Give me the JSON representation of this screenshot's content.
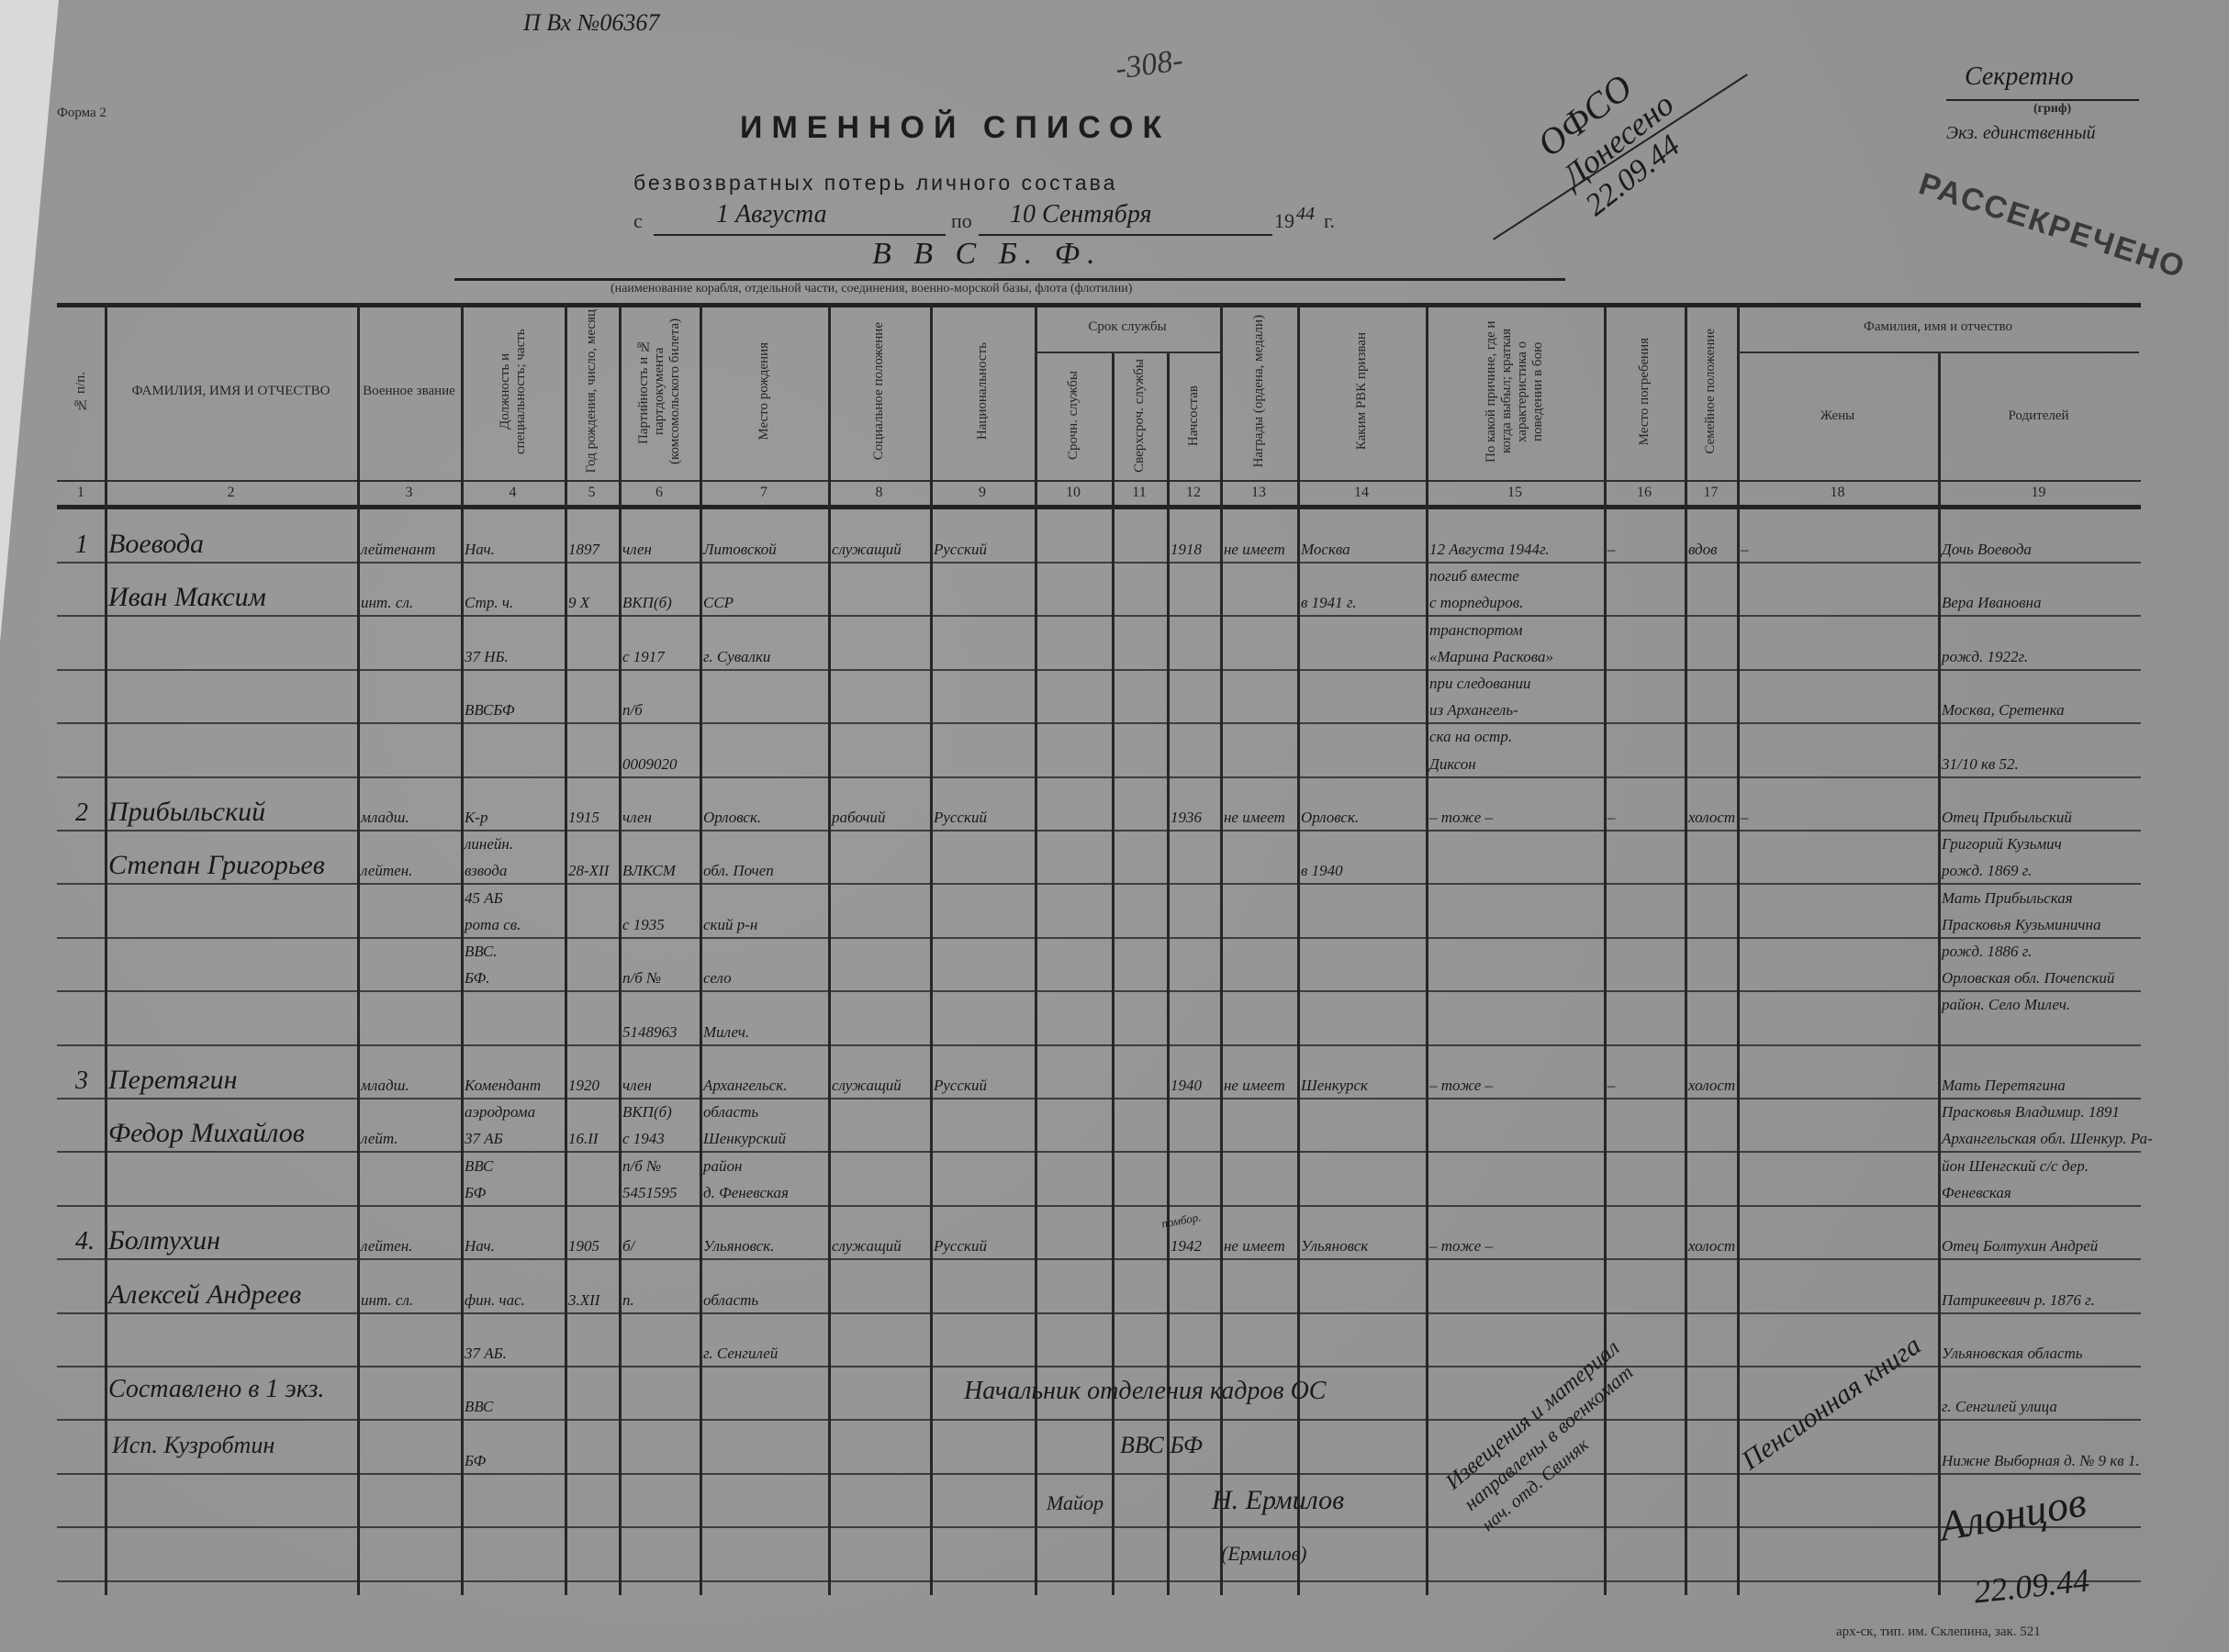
{
  "header": {
    "registration": "П Вх №06367",
    "page_number": "-308-",
    "form_label": "Форма 2",
    "title": "ИМЕННОЙ СПИСОК",
    "subtitle": "безвозвратных потерь личного состава",
    "period_from_label": "с",
    "period_from": "1 Августа",
    "period_to_label": "по",
    "period_to": "10 Сентября",
    "year_prefix": "19",
    "year_suffix": "44",
    "year_label": "г.",
    "unit": "В В С Б. Ф.",
    "unit_caption": "(наименование корабля, отдельной части, соединения, военно-морской базы, флота (флотилии)",
    "ofso_note": [
      "ОФСО",
      "Донесено",
      "22.09.44"
    ],
    "secrecy": "Секретно",
    "secrecy_caption": "(гриф)",
    "copy_note": "Экз. единственный",
    "declassified_stamp": "РАССЕКРЕЧЕНО"
  },
  "columns": [
    {
      "num": "1",
      "label": "№ п/п.",
      "vertical": true
    },
    {
      "num": "2",
      "label": "ФАМИЛИЯ, ИМЯ И ОТЧЕСТВО",
      "vertical": false
    },
    {
      "num": "3",
      "label": "Военное звание",
      "vertical": false
    },
    {
      "num": "4",
      "label": "Должность и специальность; часть",
      "vertical": true
    },
    {
      "num": "5",
      "label": "Год рождения, число, месяц",
      "vertical": true
    },
    {
      "num": "6",
      "label": "Партийность и № партдокумента (комсомольского билета)",
      "vertical": true
    },
    {
      "num": "7",
      "label": "Место рождения",
      "vertical": true
    },
    {
      "num": "8",
      "label": "Социальное положение",
      "vertical": true
    },
    {
      "num": "9",
      "label": "Национальность",
      "vertical": true
    },
    {
      "num": "10",
      "label": "Срочн. службы",
      "vertical": true
    },
    {
      "num": "11",
      "label": "Сверхсроч. службы",
      "vertical": true
    },
    {
      "num": "12",
      "label": "Начсостав",
      "vertical": true
    },
    {
      "num": "13",
      "label": "Награды (ордена, медали)",
      "vertical": true
    },
    {
      "num": "14",
      "label": "Каким РВК призван",
      "vertical": true
    },
    {
      "num": "15",
      "label": "По какой причине, где и когда выбыл; краткая характеристика о поведении в бою",
      "vertical": true
    },
    {
      "num": "16",
      "label": "Место погребения",
      "vertical": true
    },
    {
      "num": "17",
      "label": "Семейное положение",
      "vertical": true
    },
    {
      "num": "18",
      "label": "Жены",
      "vertical": false
    },
    {
      "num": "19",
      "label": "Родителей",
      "vertical": false
    }
  ],
  "column_groups": {
    "service_term": "Срок службы",
    "relatives": "Фамилия, имя и отчество"
  },
  "persons": [
    {
      "num": [
        "1"
      ],
      "name": [
        "Воевода",
        "Иван Максим"
      ],
      "rank": [
        "лейтенант",
        "инт. сл."
      ],
      "position": [
        "Нач.",
        "Стр. ч.",
        "37 НБ.",
        "ВВСБФ"
      ],
      "birth": [
        "1897",
        "9 X"
      ],
      "party": [
        "член",
        "ВКП(б)",
        "с 1917",
        "п/б",
        "0009020"
      ],
      "birthplace": [
        "Литовской",
        "ССР",
        "г. Сувалки"
      ],
      "social": [
        "служащий"
      ],
      "nationality": [
        "Русский"
      ],
      "term_regular": [],
      "term_extended": [],
      "officer": [
        "1918"
      ],
      "awards": [
        "не имеет"
      ],
      "rvk": [
        "Москва",
        "в 1941 г."
      ],
      "cause": [
        "12 Августа 1944г.",
        "погиб вместе",
        "с торпедиров.",
        "транспортом",
        "«Марина Раскова»",
        "при следовании",
        "из Архангель-",
        "ска на остр.",
        "Диксон"
      ],
      "burial": [
        "–"
      ],
      "family": [
        "вдов"
      ],
      "wife": [
        "–"
      ],
      "parents": [
        "Дочь Воевода",
        "Вера Ивановна",
        "рожд. 1922г.",
        "Москва, Сретенка",
        "31/10 кв 52."
      ]
    },
    {
      "num": [
        "2"
      ],
      "name": [
        "Прибыльский",
        "Степан Григорьев"
      ],
      "rank": [
        "младш.",
        "лейтен."
      ],
      "position": [
        "К-р",
        "линейн.",
        "взвода",
        "45 АБ",
        "рота св.",
        "ВВС.",
        "БФ."
      ],
      "birth": [
        "1915",
        "28-XII"
      ],
      "party": [
        "член",
        "ВЛКСМ",
        "с 1935",
        "п/б №",
        "5148963"
      ],
      "birthplace": [
        "Орловск.",
        "обл. Почеп",
        "ский р-н",
        "село",
        "Милеч."
      ],
      "social": [
        "рабочий"
      ],
      "nationality": [
        "Русский"
      ],
      "term_regular": [],
      "term_extended": [],
      "officer": [
        "1936"
      ],
      "awards": [
        "не имеет"
      ],
      "rvk": [
        "Орловск.",
        "в 1940"
      ],
      "cause": [
        "– тоже –"
      ],
      "burial": [
        "–"
      ],
      "family": [
        "холост"
      ],
      "wife": [
        "–"
      ],
      "parents": [
        "Отец Прибыльский",
        "Григорий Кузьмич",
        "рожд. 1869 г.",
        "Мать Прибыльская",
        "Прасковья Кузьминична",
        "рожд. 1886 г.",
        "Орловская обл. Почепский",
        "район. Село Милеч."
      ]
    },
    {
      "num": [
        "3"
      ],
      "name": [
        "Перетягин",
        "Федор Михайлов"
      ],
      "rank": [
        "младш.",
        "лейт."
      ],
      "position": [
        "Комендант",
        "аэродрома",
        "37 АБ",
        "ВВС",
        "БФ"
      ],
      "birth": [
        "1920",
        "16.II"
      ],
      "party": [
        "член",
        "ВКП(б)",
        "с 1943",
        "п/б №",
        "5451595"
      ],
      "birthplace": [
        "Архангельск.",
        "область",
        "Шенкурский",
        "район",
        "д. Феневская"
      ],
      "social": [
        "служащий"
      ],
      "nationality": [
        "Русский"
      ],
      "term_regular": [],
      "term_extended": [],
      "officer": [
        "1940"
      ],
      "awards": [
        "не имеет"
      ],
      "rvk": [
        "Шенкурск"
      ],
      "cause": [
        "– тоже –"
      ],
      "burial": [
        "–"
      ],
      "family": [
        "холост"
      ],
      "wife": [],
      "parents": [
        "Мать Перетягина",
        "Прасковья Владимир. 1891",
        "Архангельская обл. Шенкур. Ра-",
        "йон Шенгский с/с дер.",
        "Феневская"
      ]
    },
    {
      "num": [
        "4."
      ],
      "name": [
        "Болтухин",
        "Алексей Андреев"
      ],
      "rank": [
        "лейтен.",
        "инт. сл."
      ],
      "position": [
        "Нач.",
        "фин. час.",
        "37 АБ.",
        "ВВС",
        "БФ"
      ],
      "birth": [
        "1905",
        "3.XII"
      ],
      "party": [
        "б/",
        "п."
      ],
      "birthplace": [
        "Ульяновск.",
        "область",
        "г. Сенгилей"
      ],
      "social": [
        "служащий"
      ],
      "nationality": [
        "Русский"
      ],
      "term_regular": [],
      "term_extended": [],
      "officer": [
        "1942"
      ],
      "officer_note": "помбор.",
      "awards": [
        "не имеет"
      ],
      "rvk": [
        "Ульяновск"
      ],
      "cause": [
        "– тоже –"
      ],
      "burial": [],
      "family": [
        "холост"
      ],
      "wife": [],
      "parents": [
        "Отец Болтухин Андрей",
        "Патрикеевич р. 1876 г.",
        "Ульяновская область",
        "г. Сенгилей улица",
        "Нижне Выборная д. № 9 кв 1."
      ]
    }
  ],
  "footer": {
    "compiled": "Составлено в 1 экз.",
    "executor": "Исп. Кузробтин",
    "chief": "Начальник отделения кадров ОС",
    "chief_unit": "ВВС БФ",
    "chief_rank": "Майор",
    "chief_signature": "Н. Ермилов",
    "chief_name": "(Ермилов)",
    "notice_note": [
      "Извещения и материал",
      "направлены в военкомат",
      "нач. отд. Свиняк"
    ],
    "pension_note": "Пенсионная книга",
    "pension_signature": "Алонцов",
    "pension_date": "22.09.44",
    "printer": "арх-ск, тип. им. Склепина, зак. 521"
  }
}
